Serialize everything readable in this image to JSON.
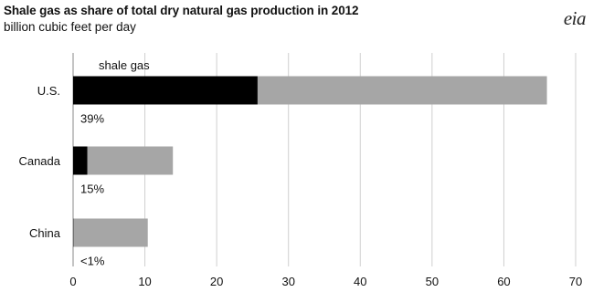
{
  "chart_data": {
    "type": "bar",
    "orientation": "horizontal",
    "stacked": true,
    "title": "Shale gas as share of total dry natural gas production in 2012",
    "subtitle": "billion cubic feet per day",
    "source_logo": "eia",
    "categories": [
      "U.S.",
      "Canada",
      "China"
    ],
    "series": [
      {
        "name": "shale gas",
        "values": [
          25.7,
          2.0,
          0.05
        ],
        "color": "#000000"
      },
      {
        "values": [
          40.3,
          11.9,
          10.35
        ],
        "color": "#a6a6a6"
      }
    ],
    "totals": [
      66.0,
      13.9,
      10.4
    ],
    "share_labels": [
      "39%",
      "15%",
      "<1%"
    ],
    "xlim": [
      0,
      70
    ],
    "xticks": [
      0,
      10,
      20,
      30,
      40,
      50,
      60,
      70
    ],
    "grid": true,
    "legend_placement": "label above U.S. shale bar"
  }
}
